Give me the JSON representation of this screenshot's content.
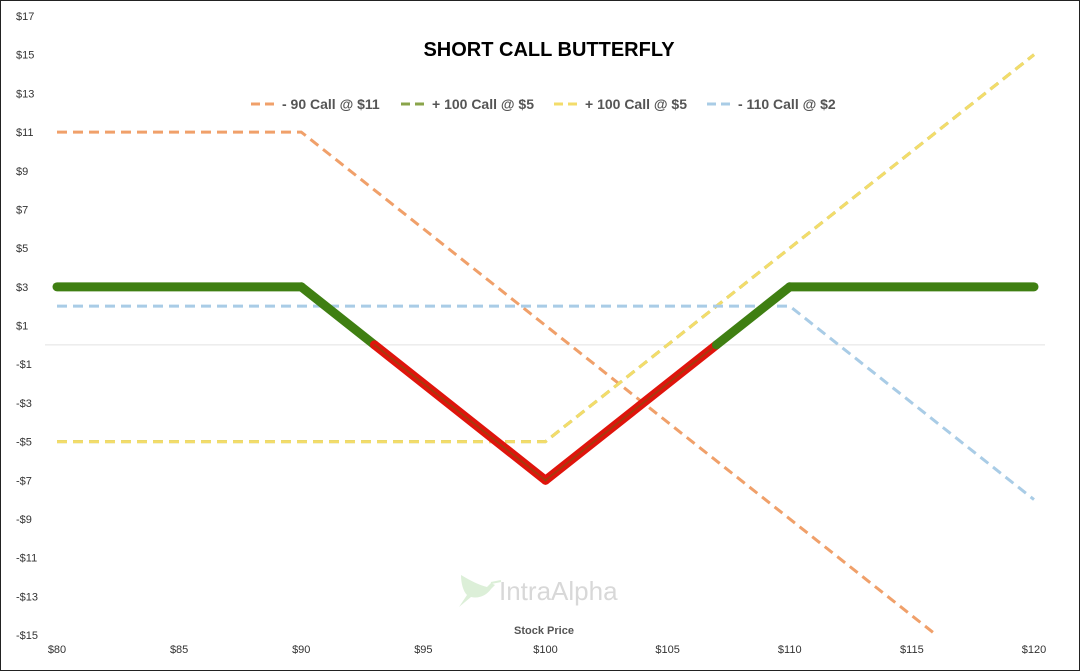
{
  "chart_data": {
    "type": "line",
    "title": "SHORT CALL BUTTERFLY",
    "xlabel": "Stock Price",
    "ylabel": "",
    "xlim": [
      80,
      120
    ],
    "ylim": [
      -15,
      17
    ],
    "x_ticks": [
      80,
      85,
      90,
      95,
      100,
      105,
      110,
      115,
      120
    ],
    "x_tick_labels": [
      "$80",
      "$85",
      "$90",
      "$95",
      "$100",
      "$105",
      "$110",
      "$115",
      "$120"
    ],
    "y_ticks": [
      17,
      15,
      13,
      11,
      9,
      7,
      5,
      3,
      1,
      -1,
      -3,
      -5,
      -7,
      -9,
      -11,
      -13,
      -15
    ],
    "y_tick_labels": [
      "$17",
      "$15",
      "$13",
      "$11",
      "$9",
      "$7",
      "$5",
      "$3",
      "$1",
      "-$1",
      "-$3",
      "-$5",
      "-$7",
      "-$9",
      "-$11",
      "-$13",
      "-$15"
    ],
    "legend_position": "top-center",
    "series": [
      {
        "name": "- 90 Call @ $11",
        "color": "#f0a06a",
        "style": "dashed",
        "x": [
          80,
          90,
          116
        ],
        "y": [
          11,
          11,
          -15
        ]
      },
      {
        "name": "+ 100 Call @ $5",
        "color": "#8aa44a",
        "style": "dashed",
        "x": [
          80,
          100,
          120
        ],
        "y": [
          -5,
          -5,
          15
        ]
      },
      {
        "name": "+ 100 Call @ $5",
        "color": "#f3dc6a",
        "style": "dashed",
        "x": [
          80,
          100,
          120
        ],
        "y": [
          -5,
          -5,
          15
        ]
      },
      {
        "name": "- 110 Call @ $2",
        "color": "#a9cce6",
        "style": "dashed",
        "x": [
          80,
          110,
          120
        ],
        "y": [
          2,
          2,
          -8
        ]
      }
    ],
    "payoff": {
      "x": [
        80,
        90,
        100,
        110,
        120
      ],
      "y": [
        3,
        3,
        -7,
        3,
        3
      ],
      "profit_color": "#3f7f12",
      "loss_color": "#e0140c"
    },
    "watermark": "IntraAlpha"
  }
}
